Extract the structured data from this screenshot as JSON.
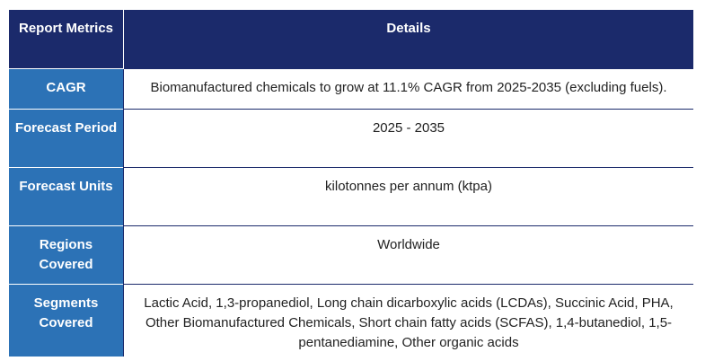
{
  "table": {
    "headers": {
      "metric": "Report Metrics",
      "details": "Details"
    },
    "rows": [
      {
        "metric": "CAGR",
        "value": "Biomanufactured chemicals to grow at 11.1% CAGR from 2025-2035 (excluding fuels)."
      },
      {
        "metric": "Forecast Period",
        "value": "2025 - 2035"
      },
      {
        "metric": "Forecast Units",
        "value": "kilotonnes per annum (ktpa)"
      },
      {
        "metric": "Regions Covered",
        "value": "Worldwide"
      },
      {
        "metric": "Segments Covered",
        "value": "Lactic Acid, 1,3-propanediol, Long chain dicarboxylic acids (LCDAs), Succinic Acid, PHA, Other Biomanufactured Chemicals, Short chain fatty acids (SCFAS), 1,4-butanediol, 1,5-pentanediamine, Other organic acids"
      }
    ]
  },
  "colors": {
    "header_background": "#1b2a6b",
    "metric_background": "#2c72b6",
    "text_light": "#ffffff",
    "text_dark": "#222222"
  }
}
